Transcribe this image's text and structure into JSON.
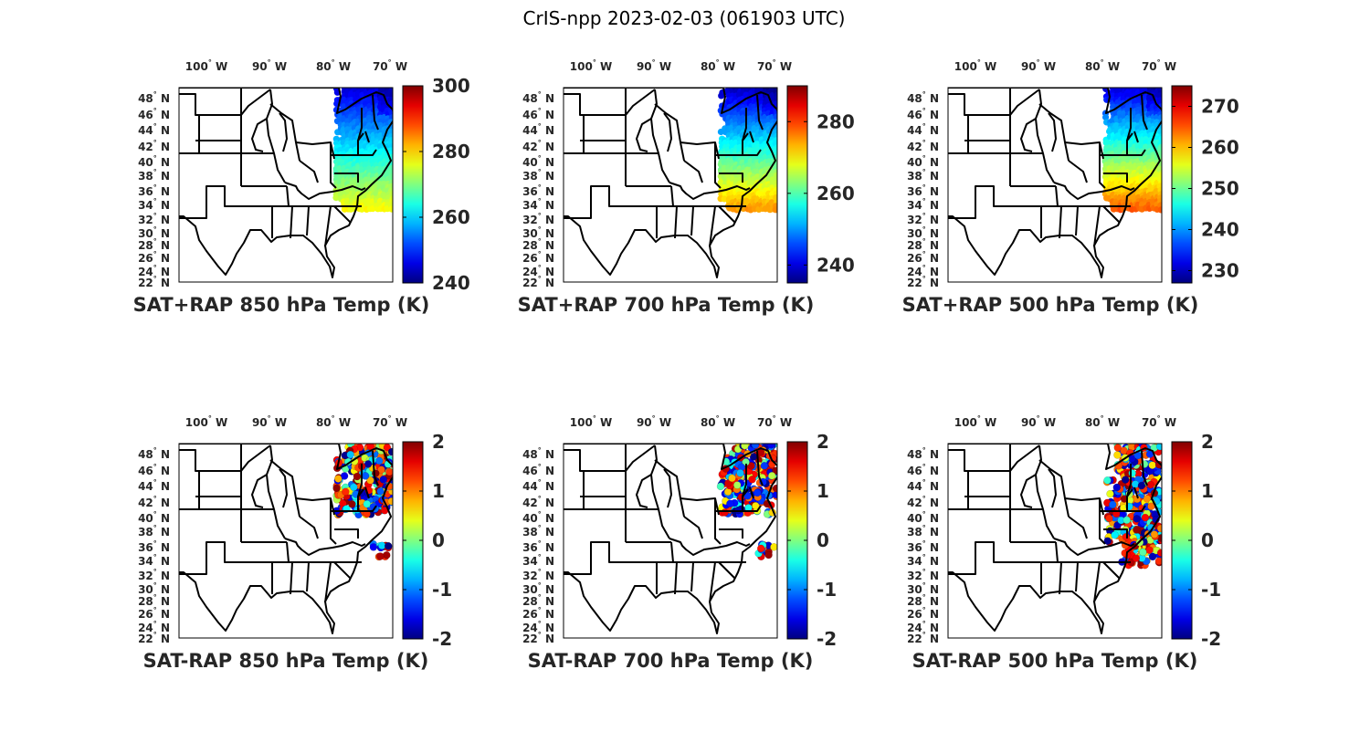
{
  "figure_title": "CrIS-npp 2023-02-03 (061903 UTC)",
  "lon_ticks": [
    "100",
    "90",
    "80",
    "70"
  ],
  "lon_suffix": "W",
  "lat_ticks": [
    "48",
    "46",
    "44",
    "42",
    "40",
    "38",
    "36",
    "34",
    "32",
    "30",
    "28",
    "26",
    "24",
    "22"
  ],
  "lat_suffix": "N",
  "degree_symbol": "°",
  "colormap": "jet",
  "colors": {
    "frame": "#000000",
    "text": "#262626",
    "background": "#ffffff"
  },
  "panels": [
    {
      "title": "SAT+RAP 850 hPa Temp (K)",
      "kind": "absolute",
      "clim": [
        240,
        300
      ],
      "cb_ticks": [
        "300",
        "280",
        "260",
        "240"
      ]
    },
    {
      "title": "SAT+RAP 700 hPa Temp (K)",
      "kind": "absolute",
      "clim": [
        235,
        290
      ],
      "cb_ticks": [
        "280",
        "260",
        "240"
      ]
    },
    {
      "title": "SAT+RAP 500 hPa Temp (K)",
      "kind": "absolute",
      "clim": [
        227,
        275
      ],
      "cb_ticks": [
        "270",
        "260",
        "250",
        "240",
        "230"
      ]
    },
    {
      "title": "SAT-RAP 850 hPa Temp (K)",
      "kind": "difference",
      "clim": [
        -2,
        2
      ],
      "cb_ticks": [
        "2",
        "1",
        "0",
        "-1",
        "-2"
      ]
    },
    {
      "title": "SAT-RAP 700 hPa Temp (K)",
      "kind": "difference",
      "clim": [
        -2,
        2
      ],
      "cb_ticks": [
        "2",
        "1",
        "0",
        "-1",
        "-2"
      ]
    },
    {
      "title": "SAT-RAP 500 hPa Temp (K)",
      "kind": "difference",
      "clim": [
        -2,
        2
      ],
      "cb_ticks": [
        "2",
        "1",
        "0",
        "-1",
        "-2"
      ]
    }
  ]
}
